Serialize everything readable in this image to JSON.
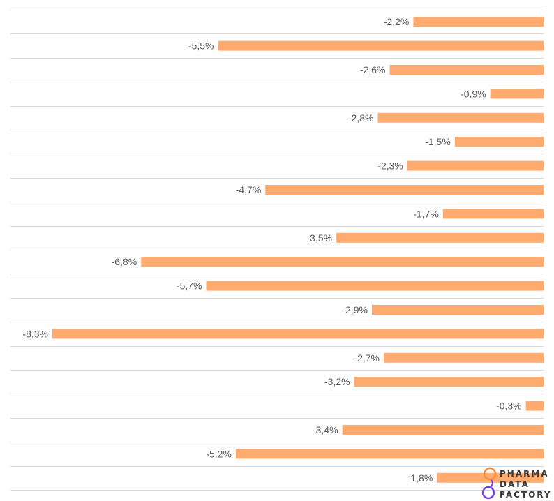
{
  "chart_data": {
    "type": "bar",
    "orientation": "horizontal",
    "values": [
      -2.2,
      -5.5,
      -2.6,
      -0.9,
      -2.8,
      -1.5,
      -2.3,
      -4.7,
      -1.7,
      -3.5,
      -6.8,
      -5.7,
      -2.9,
      -8.3,
      -2.7,
      -3.2,
      -0.3,
      -3.4,
      -5.2,
      -1.8
    ],
    "labels": [
      "-2,2%",
      "-5,5%",
      "-2,6%",
      "-0,9%",
      "-2,8%",
      "-1,5%",
      "-2,3%",
      "-4,7%",
      "-1,7%",
      "-3,5%",
      "-6,8%",
      "-5,7%",
      "-2,9%",
      "-8,3%",
      "-2,7%",
      "-3,2%",
      "-0,3%",
      "-3,4%",
      "-5,2%",
      "-1,8%"
    ],
    "unit": "%",
    "xlim": [
      -9,
      0
    ],
    "grid": true,
    "colors": {
      "bar": "#FFAB70",
      "grid": "#D9D9D9",
      "label": "#595959"
    }
  },
  "logo": {
    "lines": [
      "PHARMA",
      "DATA",
      "FACTORY"
    ],
    "colors": {
      "orange": "#FF8C3A",
      "purple": "#7B3FF2"
    }
  }
}
